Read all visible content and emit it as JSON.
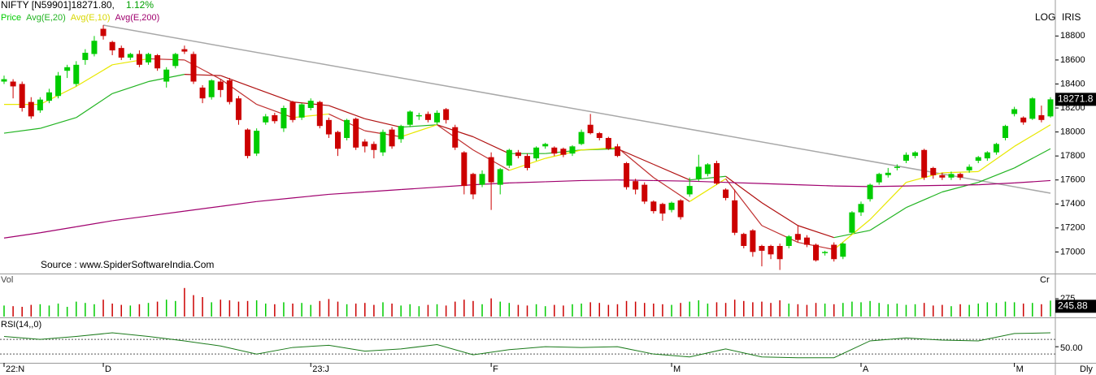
{
  "chart_data": {
    "type": "candlestick",
    "title": "NIFTY [N59901]18271.80,",
    "change_label": "1.12%",
    "scale_label": "LOG",
    "indicator_label": "IRIS",
    "source": "Source : www.SpiderSoftwareIndia.Com",
    "period_label": "Dly",
    "last_price_label": "18271.8",
    "ylim": [
      16820,
      19100
    ],
    "yticks": [
      17000,
      17200,
      17400,
      17600,
      17800,
      18000,
      18200,
      18400,
      18600,
      18800
    ],
    "xticks": [
      {
        "value": 0,
        "label": "22:N"
      },
      {
        "value": 11,
        "label": "D"
      },
      {
        "value": 34,
        "label": "23:J"
      },
      {
        "value": 54,
        "label": "F"
      },
      {
        "value": 74,
        "label": "M"
      },
      {
        "value": 95,
        "label": "A"
      },
      {
        "value": 112,
        "label": "M"
      }
    ],
    "candles": {
      "name": "Price",
      "up_color": "#00cc00",
      "down_color": "#cc0000",
      "open": [
        18420,
        18420,
        18400,
        18250,
        18180,
        18260,
        18300,
        18510,
        18400,
        18600,
        18650,
        18860,
        18750,
        18700,
        18620,
        18650,
        18580,
        18640,
        18420,
        18550,
        18690,
        18650,
        18370,
        18290,
        18420,
        18430,
        18280,
        18020,
        17820,
        18080,
        18140,
        18030,
        18250,
        18120,
        18200,
        18250,
        18100,
        18000,
        17950,
        18110,
        17920,
        17900,
        17830,
        18020,
        17940,
        18060,
        18130,
        18150,
        18080,
        18190,
        18040,
        17830,
        17650,
        17560,
        17790,
        17560,
        17720,
        17830,
        17800,
        17780,
        17880,
        17870,
        17860,
        17820,
        17900,
        18060,
        17990,
        17950,
        17880,
        17740,
        17590,
        17560,
        17420,
        17400,
        17350,
        17430,
        17480,
        17610,
        17650,
        17740,
        17520,
        17430,
        17150,
        17180,
        17050,
        17050,
        17050,
        17050,
        17150,
        17120,
        17060,
        16990,
        17060,
        16960,
        17160,
        17330,
        17440,
        17580,
        17640,
        17700,
        17760,
        17800,
        17850,
        17700,
        17640,
        17620,
        17650,
        17680,
        17760,
        17780,
        17830,
        17950,
        18150,
        18120,
        18110,
        18140,
        18130
      ],
      "high": [
        18470,
        18440,
        18420,
        18290,
        18290,
        18360,
        18500,
        18560,
        18590,
        18690,
        18800,
        18890,
        18760,
        18720,
        18660,
        18680,
        18660,
        18650,
        18540,
        18660,
        18720,
        18670,
        18390,
        18440,
        18440,
        18450,
        18300,
        18030,
        18030,
        18150,
        18160,
        18220,
        18260,
        18240,
        18280,
        18260,
        18120,
        18010,
        18110,
        18120,
        17940,
        17920,
        18020,
        18040,
        18060,
        18180,
        18160,
        18170,
        18180,
        18200,
        18060,
        17840,
        17660,
        17680,
        17830,
        17700,
        17860,
        17850,
        17820,
        17880,
        17910,
        17880,
        17870,
        17890,
        18020,
        18150,
        18000,
        17960,
        17900,
        17750,
        17610,
        17580,
        17430,
        17410,
        17420,
        17440,
        17620,
        17810,
        17740,
        17760,
        17530,
        17520,
        17160,
        17190,
        17060,
        17060,
        17070,
        17140,
        17220,
        17140,
        17070,
        17010,
        17080,
        17080,
        17340,
        17420,
        17570,
        17660,
        17700,
        17730,
        17830,
        17840,
        17860,
        17710,
        17660,
        17670,
        17660,
        17730,
        17800,
        17840,
        17910,
        18060,
        18210,
        18130,
        18290,
        18220,
        18290
      ],
      "low": [
        18400,
        18280,
        18170,
        18110,
        18160,
        18240,
        18280,
        18450,
        18380,
        18560,
        18630,
        18770,
        18640,
        18600,
        18600,
        18540,
        18560,
        18510,
        18370,
        18530,
        18650,
        18400,
        18240,
        18270,
        18290,
        18230,
        18060,
        17780,
        17800,
        18060,
        18070,
        18000,
        18080,
        18100,
        18180,
        18030,
        17950,
        17800,
        17930,
        17850,
        17830,
        17780,
        17800,
        17860,
        17910,
        18040,
        18100,
        18080,
        18060,
        18070,
        17850,
        17480,
        17440,
        17540,
        17350,
        17480,
        17700,
        17780,
        17680,
        17760,
        17860,
        17800,
        17790,
        17800,
        17890,
        17980,
        17930,
        17850,
        17790,
        17520,
        17480,
        17400,
        17320,
        17260,
        17330,
        17270,
        17460,
        17590,
        17630,
        17560,
        17430,
        17140,
        17030,
        16960,
        16880,
        16940,
        16850,
        17030,
        17080,
        17040,
        16920,
        16970,
        16920,
        16940,
        17150,
        17300,
        17420,
        17560,
        17620,
        17680,
        17740,
        17780,
        17600,
        17610,
        17600,
        17600,
        17600,
        17660,
        17740,
        17760,
        17810,
        17930,
        18130,
        18060,
        18100,
        18080,
        18120
      ],
      "close": [
        18440,
        18380,
        18200,
        18130,
        18270,
        18330,
        18470,
        18540,
        18560,
        18660,
        18760,
        18800,
        18680,
        18620,
        18650,
        18560,
        18650,
        18530,
        18520,
        18650,
        18670,
        18420,
        18280,
        18430,
        18350,
        18250,
        18100,
        17800,
        18010,
        18130,
        18090,
        18200,
        18100,
        18230,
        18260,
        18050,
        17980,
        17860,
        18100,
        17870,
        17880,
        17850,
        18000,
        17880,
        18050,
        18170,
        18140,
        18100,
        18160,
        18100,
        17870,
        17550,
        17480,
        17650,
        17580,
        17690,
        17850,
        17800,
        17700,
        17870,
        17900,
        17820,
        17810,
        17880,
        18000,
        17990,
        17950,
        17860,
        17800,
        17540,
        17520,
        17420,
        17340,
        17320,
        17410,
        17290,
        17550,
        17710,
        17730,
        17570,
        17450,
        17160,
        17050,
        17000,
        17010,
        16980,
        16940,
        17130,
        17100,
        17060,
        16930,
        17000,
        16940,
        17070,
        17330,
        17400,
        17560,
        17650,
        17660,
        17710,
        17810,
        17830,
        17620,
        17640,
        17620,
        17650,
        17620,
        17710,
        17790,
        17830,
        17900,
        18050,
        18190,
        18080,
        18280,
        18100,
        18272
      ]
    },
    "avg_x": [
      0,
      4,
      8,
      12,
      16,
      20,
      24,
      28,
      32,
      36,
      40,
      44,
      48,
      52,
      56,
      60,
      64,
      68,
      72,
      76,
      80,
      84,
      88,
      92,
      96,
      100,
      104,
      108,
      112,
      116
    ],
    "series": [
      {
        "name": "Avg(E,20)",
        "color": "#22b422",
        "down_color": "#b01010",
        "values": [
          17990,
          18030,
          18120,
          18320,
          18420,
          18480,
          18470,
          18360,
          18250,
          18220,
          18110,
          18040,
          18060,
          17960,
          17820,
          17820,
          17850,
          17860,
          17730,
          17600,
          17630,
          17410,
          17220,
          17120,
          17180,
          17370,
          17500,
          17580,
          17700,
          17860
        ]
      },
      {
        "name": "Avg(E,10)",
        "color": "#e8e800",
        "down_color": "#c03030",
        "values": [
          18230,
          18230,
          18380,
          18560,
          18610,
          18600,
          18440,
          18230,
          18120,
          18150,
          18010,
          17960,
          18060,
          17850,
          17680,
          17780,
          17850,
          17870,
          17620,
          17420,
          17610,
          17220,
          17080,
          17020,
          17270,
          17580,
          17660,
          17670,
          17880,
          18060
        ]
      },
      {
        "name": "Avg(E,200)",
        "color": "#a0006e",
        "values": [
          17116,
          17160,
          17210,
          17260,
          17300,
          17340,
          17380,
          17420,
          17450,
          17480,
          17500,
          17520,
          17540,
          17560,
          17575,
          17585,
          17595,
          17600,
          17595,
          17590,
          17580,
          17570,
          17560,
          17550,
          17545,
          17550,
          17555,
          17560,
          17575,
          17595
        ]
      }
    ],
    "trendline": {
      "color": "#a8a8a8",
      "from": {
        "index": 11,
        "price": 18890
      },
      "to": {
        "index": 116,
        "price": 17490
      }
    },
    "volume": {
      "name": "Vol",
      "unit_label": "Cr",
      "last_label": "245.88",
      "ylim": [
        0,
        600
      ],
      "yticks": [
        275
      ],
      "values": [
        170,
        160,
        150,
        180,
        190,
        170,
        200,
        150,
        230,
        210,
        190,
        260,
        200,
        180,
        170,
        190,
        210,
        230,
        260,
        240,
        440,
        330,
        300,
        220,
        260,
        250,
        230,
        240,
        250,
        200,
        190,
        220,
        200,
        210,
        180,
        240,
        270,
        230,
        190,
        200,
        210,
        180,
        220,
        200,
        170,
        190,
        160,
        180,
        190,
        170,
        230,
        260,
        240,
        190,
        280,
        230,
        210,
        180,
        170,
        190,
        160,
        180,
        170,
        190,
        200,
        220,
        210,
        180,
        190,
        240,
        230,
        210,
        200,
        190,
        180,
        210,
        230,
        250,
        200,
        220,
        210,
        260,
        240,
        220,
        230,
        210,
        250,
        200,
        190,
        180,
        210,
        200,
        190,
        210,
        230,
        220,
        240,
        210,
        190,
        200,
        180,
        190,
        210,
        170,
        180,
        160,
        190,
        180,
        200,
        220,
        210,
        230,
        220,
        200,
        210,
        190,
        245.88
      ]
    },
    "rsi": {
      "name": "RSI(14,,0)",
      "color": "#1a7a1a",
      "ylim": [
        28,
        89
      ],
      "yticks": [
        {
          "value": 50,
          "label": "50.00"
        }
      ],
      "levels": [
        40,
        60
      ],
      "values": [
        64,
        60,
        64,
        69,
        64,
        58,
        51,
        40,
        49,
        52,
        44,
        47,
        53,
        39,
        46,
        50,
        49,
        50,
        40,
        36,
        47,
        36,
        35,
        35,
        58,
        62,
        59,
        58,
        68,
        69
      ]
    }
  }
}
